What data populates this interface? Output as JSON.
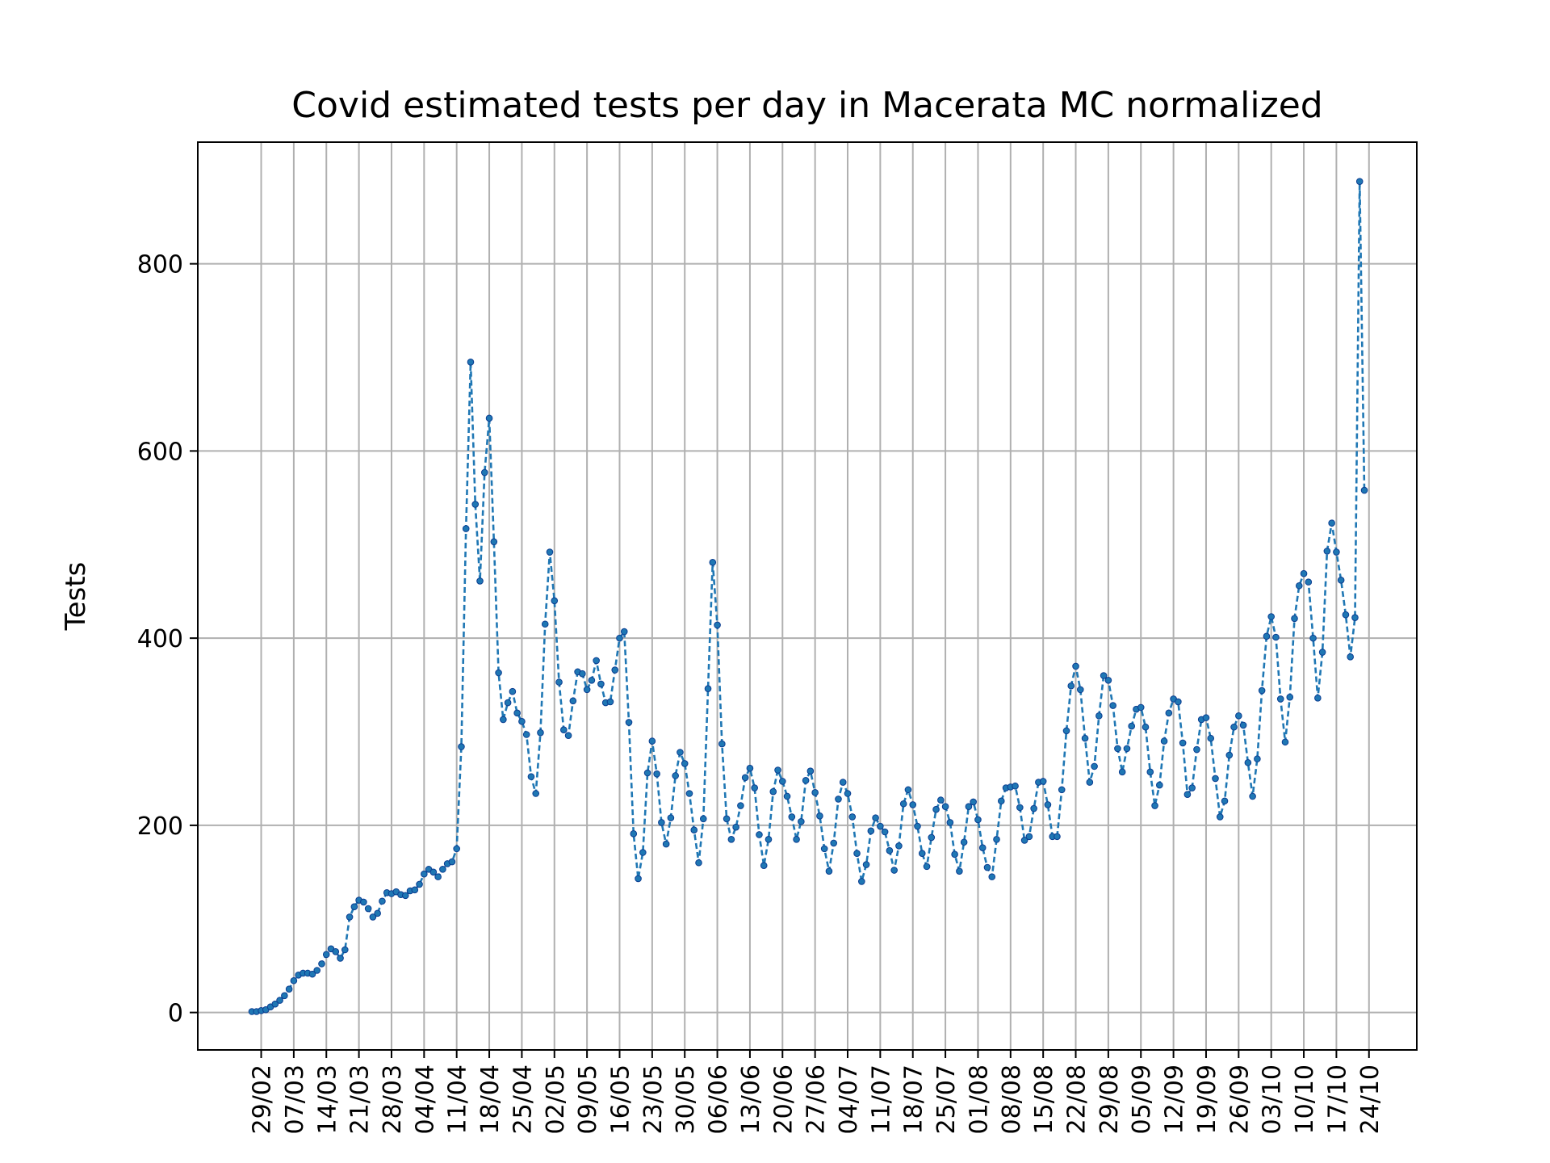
{
  "chart_data": {
    "type": "line",
    "title": "Covid estimated tests per day in Macerata MC normalized",
    "xlabel": "",
    "ylabel": "Tests",
    "ylim": [
      -40,
      930
    ],
    "yticks": [
      0,
      200,
      400,
      600,
      800
    ],
    "grid": true,
    "line_color": "#1f77b4",
    "marker_color": "#1f77b4",
    "line_style": "dashed",
    "xtick_labels": [
      "29/02",
      "07/03",
      "14/03",
      "21/03",
      "28/03",
      "04/04",
      "11/04",
      "18/04",
      "25/04",
      "02/05",
      "09/05",
      "16/05",
      "23/05",
      "30/05",
      "06/06",
      "13/06",
      "20/06",
      "27/06",
      "04/07",
      "11/07",
      "18/07",
      "25/07",
      "01/08",
      "08/08",
      "15/08",
      "22/08",
      "29/08",
      "05/09",
      "12/09",
      "19/09",
      "26/09",
      "03/10",
      "10/10",
      "17/10",
      "24/10"
    ],
    "series": [
      {
        "start_date": "2020-02-27",
        "values": [
          1,
          1,
          2,
          3,
          6,
          9,
          13,
          18,
          25,
          34,
          40,
          42,
          42,
          41,
          45,
          52,
          62,
          68,
          65,
          58,
          67,
          102,
          113,
          120,
          118,
          111,
          102,
          106,
          119,
          128,
          127,
          129,
          126,
          125,
          130,
          131,
          137,
          148,
          153,
          150,
          145,
          153,
          159,
          161,
          175,
          284,
          517,
          695,
          543,
          461,
          577,
          635,
          503,
          363,
          313,
          331,
          343,
          320,
          311,
          297,
          252,
          234,
          299,
          415,
          492,
          440,
          353,
          302,
          296,
          333,
          364,
          362,
          345,
          355,
          376,
          351,
          331,
          332,
          366,
          400,
          407,
          310,
          191,
          143,
          171,
          256,
          290,
          255,
          203,
          180,
          208,
          253,
          278,
          266,
          234,
          195,
          160,
          207,
          346,
          481,
          414,
          287,
          207,
          185,
          198,
          221,
          251,
          261,
          240,
          190,
          157,
          185,
          236,
          259,
          247,
          231,
          209,
          185,
          204,
          248,
          258,
          235,
          210,
          175,
          151,
          181,
          228,
          246,
          234,
          209,
          170,
          140,
          158,
          194,
          208,
          199,
          193,
          173,
          152,
          178,
          223,
          238,
          222,
          199,
          170,
          156,
          187,
          217,
          227,
          220,
          203,
          169,
          151,
          182,
          220,
          225,
          206,
          176,
          155,
          145,
          185,
          226,
          240,
          241,
          242,
          219,
          184,
          188,
          218,
          246,
          247,
          222,
          188,
          188,
          238,
          301,
          349,
          370,
          345,
          293,
          246,
          263,
          317,
          360,
          355,
          328,
          282,
          257,
          282,
          306,
          324,
          326,
          305,
          257,
          221,
          243,
          290,
          320,
          335,
          332,
          288,
          233,
          240,
          281,
          313,
          315,
          293,
          250,
          209,
          226,
          275,
          305,
          317,
          307,
          267,
          231,
          271,
          344,
          402,
          423,
          401,
          335,
          289,
          337,
          421,
          456,
          469,
          460,
          400,
          336,
          385,
          493,
          523,
          492,
          462,
          425,
          380,
          422,
          888,
          558
        ]
      }
    ]
  }
}
